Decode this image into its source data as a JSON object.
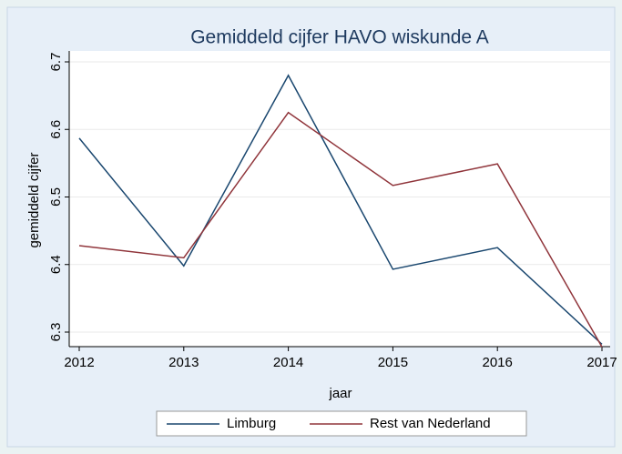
{
  "chart_data": {
    "type": "line",
    "title": "Gemiddeld cijfer HAVO wiskunde A",
    "xlabel": "jaar",
    "ylabel": "gemiddeld cijfer",
    "x": [
      2012,
      2013,
      2014,
      2015,
      2016,
      2017
    ],
    "xlim": [
      2012,
      2017
    ],
    "xticks": [
      2012,
      2013,
      2014,
      2015,
      2016,
      2017
    ],
    "ylim": [
      6.3,
      6.7
    ],
    "yticks": [
      6.3,
      6.4,
      6.5,
      6.6,
      6.7
    ],
    "grid": true,
    "legend": "bottom",
    "series": [
      {
        "name": "Limburg",
        "color": "#1a476f",
        "values": [
          6.587,
          6.398,
          6.68,
          6.393,
          6.425,
          6.282
        ]
      },
      {
        "name": "Rest van Nederland",
        "color": "#90353b",
        "values": [
          6.428,
          6.41,
          6.625,
          6.517,
          6.549,
          6.278
        ]
      }
    ]
  }
}
